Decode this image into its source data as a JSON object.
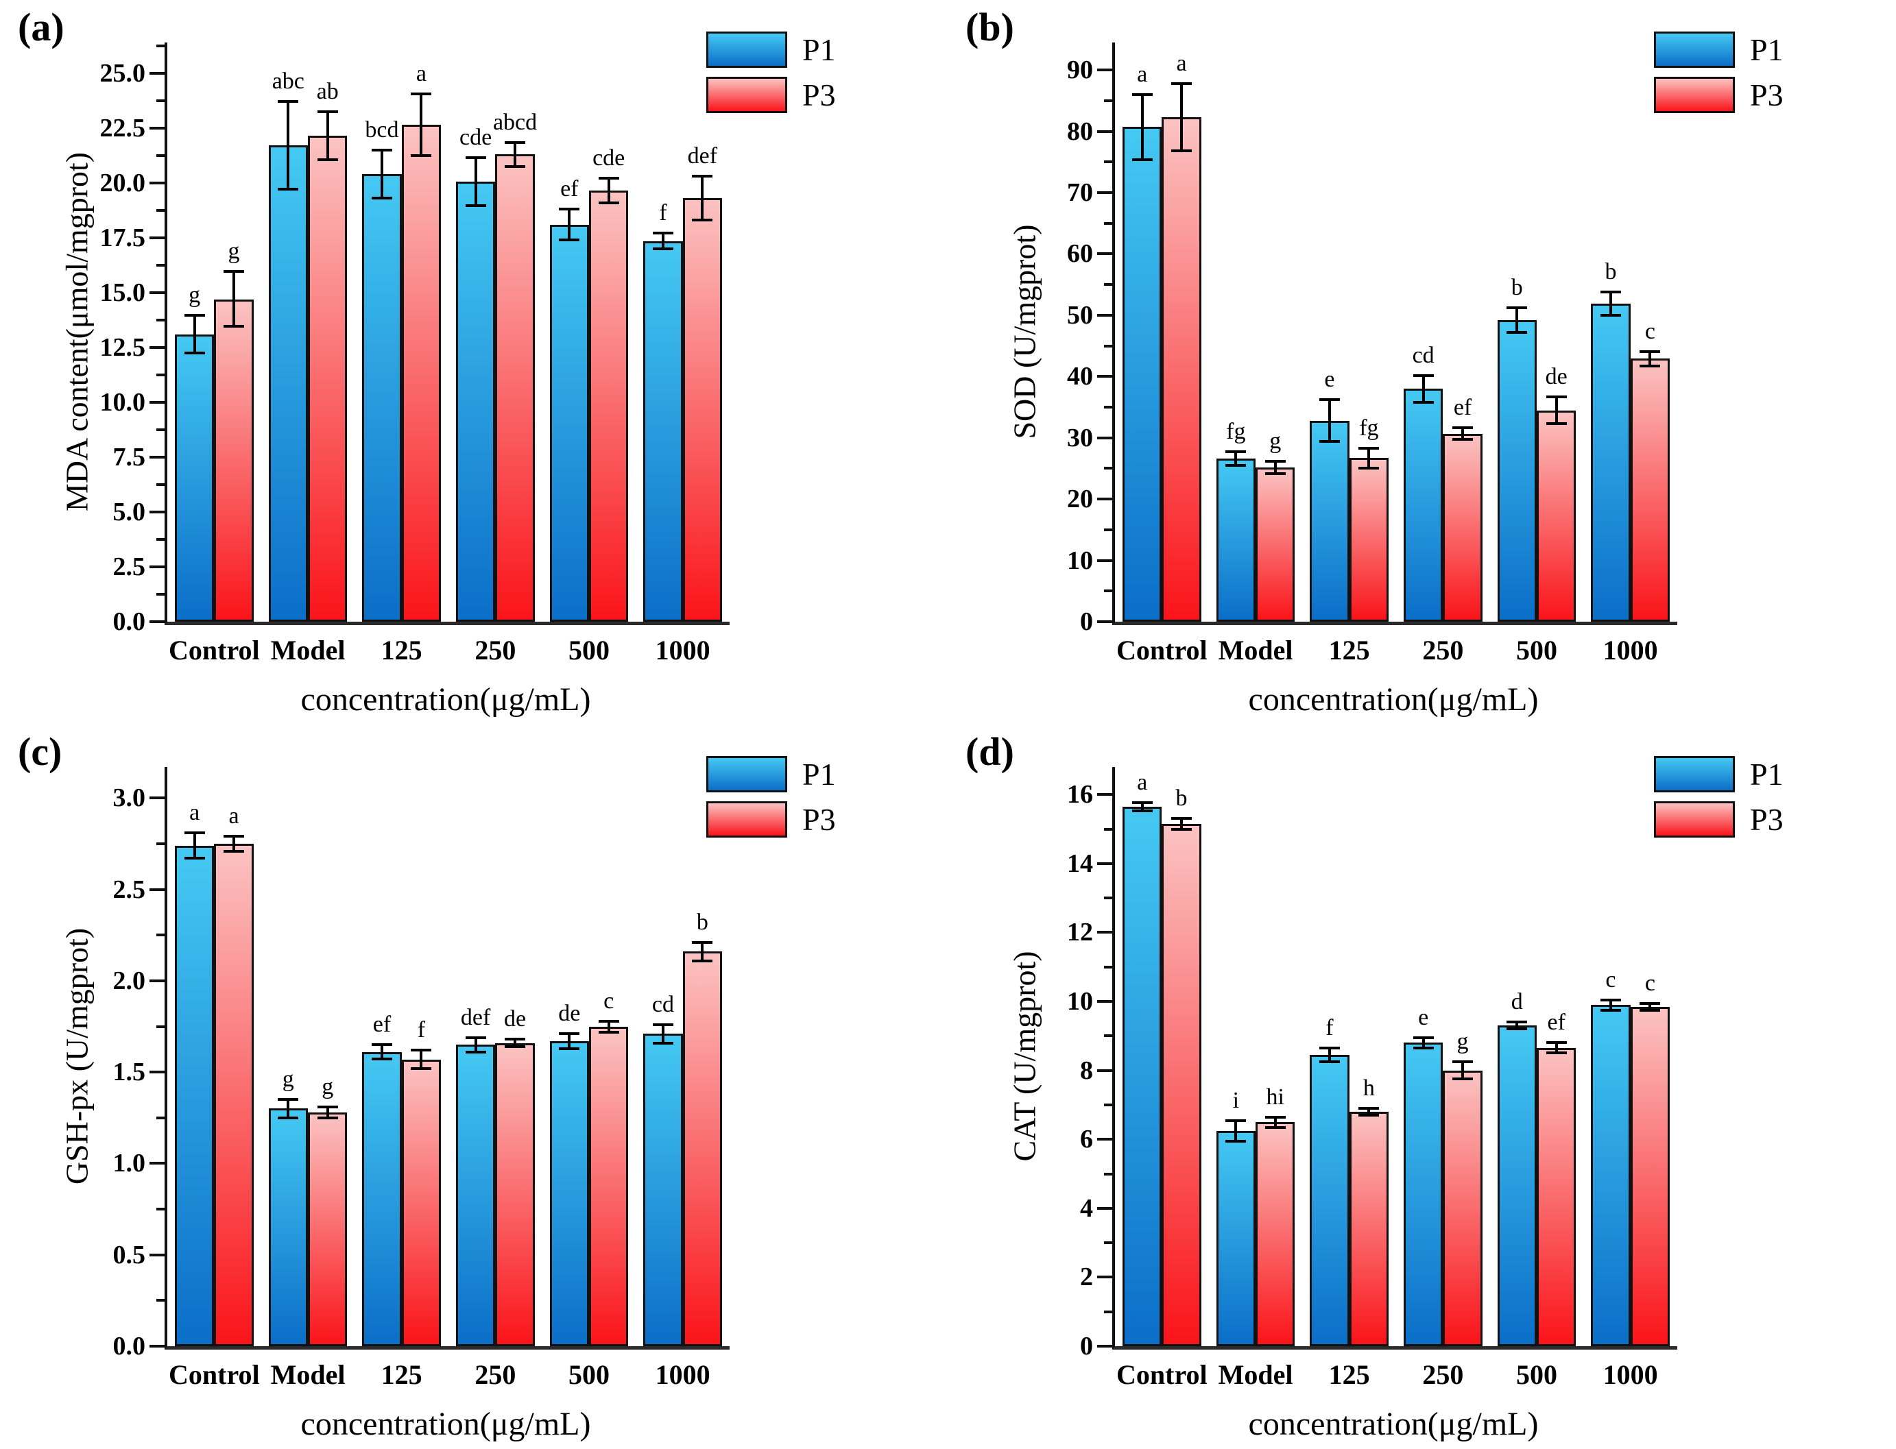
{
  "colors": {
    "p1_gradient_top": "#45C9F3",
    "p1_gradient_bottom": "#0B6EC8",
    "p3_gradient_top": "#FBC3C2",
    "p3_gradient_bottom": "#FA1419",
    "bar_border": "#111111",
    "axis": "#111111"
  },
  "chart_data": [
    {
      "type": "bar",
      "panel_tag": "(a)",
      "title": "",
      "ylabel": "MDA content(μmol/mgprot)",
      "xlabel": "concentration(μg/mL)",
      "categories": [
        "Control",
        "Model",
        "125",
        "250",
        "500",
        "1000"
      ],
      "series": [
        {
          "name": "P1",
          "values": [
            13.1,
            21.7,
            20.4,
            20.05,
            18.1,
            17.35
          ],
          "errors": [
            0.85,
            2.0,
            1.1,
            1.1,
            0.7,
            0.35
          ],
          "letters": [
            "g",
            "abc",
            "bcd",
            "cde",
            "ef",
            "f"
          ]
        },
        {
          "name": "P3",
          "values": [
            14.7,
            22.15,
            22.65,
            21.3,
            19.65,
            19.3
          ],
          "errors": [
            1.25,
            1.1,
            1.4,
            0.55,
            0.55,
            1.0
          ],
          "letters": [
            "g",
            "ab",
            "a",
            "abcd",
            "cde",
            "def"
          ]
        }
      ],
      "ylim": [
        0,
        26.4
      ],
      "yticks": [
        "0.0",
        "2.5",
        "5.0",
        "7.5",
        "10.0",
        "12.5",
        "15.0",
        "17.5",
        "20.0",
        "22.5",
        "25.0"
      ],
      "minor_step": 1.25,
      "grid": false,
      "legend": [
        "P1",
        "P3"
      ],
      "legend_position": "top-right"
    },
    {
      "type": "bar",
      "panel_tag": "(b)",
      "title": "",
      "ylabel": "SOD (U/mgprot)",
      "xlabel": "concentration(μg/mL)",
      "categories": [
        "Control",
        "Model",
        "125",
        "250",
        "500",
        "1000"
      ],
      "series": [
        {
          "name": "P1",
          "values": [
            80.7,
            26.6,
            32.8,
            38.0,
            49.2,
            51.9
          ],
          "errors": [
            5.3,
            1.1,
            3.4,
            2.2,
            2.0,
            1.9
          ],
          "letters": [
            "a",
            "fg",
            "e",
            "cd",
            "b",
            "b"
          ]
        },
        {
          "name": "P3",
          "values": [
            82.3,
            25.2,
            26.7,
            30.7,
            34.5,
            42.9
          ],
          "errors": [
            5.5,
            1.0,
            1.6,
            1.0,
            2.2,
            1.2
          ],
          "letters": [
            "a",
            "g",
            "fg",
            "ef",
            "de",
            "c"
          ]
        }
      ],
      "ylim": [
        0,
        94.5
      ],
      "yticks": [
        "0",
        "10",
        "20",
        "30",
        "40",
        "50",
        "60",
        "70",
        "80",
        "90"
      ],
      "minor_step": 5,
      "grid": false,
      "legend": [
        "P1",
        "P3"
      ],
      "legend_position": "top-right"
    },
    {
      "type": "bar",
      "panel_tag": "(c)",
      "title": "",
      "ylabel": "GSH-px (U/mgprot)",
      "xlabel": "concentration(μg/mL)",
      "categories": [
        "Control",
        "Model",
        "125",
        "250",
        "500",
        "1000"
      ],
      "series": [
        {
          "name": "P1",
          "values": [
            2.74,
            1.3,
            1.61,
            1.65,
            1.67,
            1.71
          ],
          "errors": [
            0.07,
            0.05,
            0.04,
            0.04,
            0.04,
            0.05
          ],
          "letters": [
            "a",
            "g",
            "ef",
            "def",
            "de",
            "cd"
          ]
        },
        {
          "name": "P3",
          "values": [
            2.75,
            1.28,
            1.57,
            1.66,
            1.75,
            2.16
          ],
          "errors": [
            0.04,
            0.03,
            0.05,
            0.02,
            0.03,
            0.05
          ],
          "letters": [
            "a",
            "g",
            "f",
            "de",
            "c",
            "b"
          ]
        }
      ],
      "ylim": [
        0,
        3.17
      ],
      "yticks": [
        "0.0",
        "0.5",
        "1.0",
        "1.5",
        "2.0",
        "2.5",
        "3.0"
      ],
      "minor_step": 0.25,
      "grid": false,
      "legend": [
        "P1",
        "P3"
      ],
      "legend_position": "top-right"
    },
    {
      "type": "bar",
      "panel_tag": "(d)",
      "title": "",
      "ylabel": "CAT (U/mgprot)",
      "xlabel": "concentration(μg/mL)",
      "categories": [
        "Control",
        "Model",
        "125",
        "250",
        "500",
        "1000"
      ],
      "series": [
        {
          "name": "P1",
          "values": [
            15.65,
            6.25,
            8.45,
            8.8,
            9.3,
            9.9
          ],
          "errors": [
            0.12,
            0.3,
            0.2,
            0.15,
            0.1,
            0.15
          ],
          "letters": [
            "a",
            "i",
            "f",
            "e",
            "d",
            "c"
          ]
        },
        {
          "name": "P3",
          "values": [
            15.15,
            6.5,
            6.8,
            8.0,
            8.65,
            9.85
          ],
          "errors": [
            0.15,
            0.15,
            0.1,
            0.25,
            0.15,
            0.1
          ],
          "letters": [
            "b",
            "hi",
            "h",
            "g",
            "ef",
            "c"
          ]
        }
      ],
      "ylim": [
        0,
        16.8
      ],
      "yticks": [
        "0",
        "2",
        "4",
        "6",
        "8",
        "10",
        "12",
        "14",
        "16"
      ],
      "minor_step": 1,
      "grid": false,
      "legend": [
        "P1",
        "P3"
      ],
      "legend_position": "top-right"
    }
  ]
}
